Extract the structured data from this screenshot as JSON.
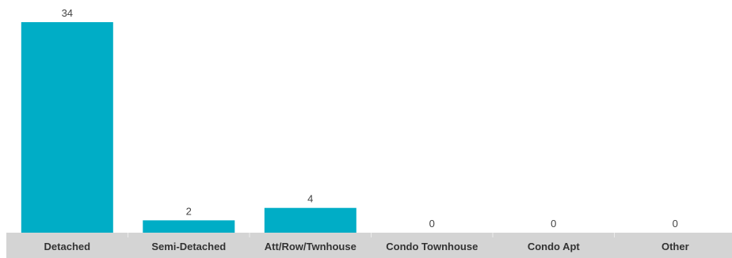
{
  "chart_data": {
    "type": "bar",
    "categories": [
      "Detached",
      "Semi-Detached",
      "Att/Row/Twnhouse",
      "Condo Townhouse",
      "Condo Apt",
      "Other"
    ],
    "values": [
      34,
      2,
      4,
      0,
      0,
      0
    ],
    "title": "",
    "xlabel": "",
    "ylabel": "",
    "ylim": [
      0,
      34
    ],
    "grid": false,
    "legend": "none",
    "colors": {
      "bar": "#00adc6",
      "axis_band": "#d4d4d4",
      "separator": "#ececec"
    }
  }
}
